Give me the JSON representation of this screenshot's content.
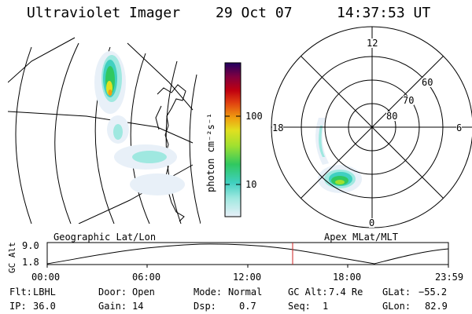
{
  "header": {
    "instrument": "Ultraviolet Imager",
    "date": "29 Oct 07",
    "time": "14:37:53 UT"
  },
  "colorbar": {
    "unit_label": "photon cm⁻²s⁻¹",
    "ticks": [
      "100",
      "10"
    ]
  },
  "polar_plot": {
    "mlt_labels": [
      "12",
      "18",
      "6",
      "0"
    ],
    "lat_labels": [
      "60",
      "70",
      "80"
    ]
  },
  "panel_labels": {
    "geographic": "Geographic Lat/Lon",
    "apex": "Apex MLat/MLT"
  },
  "altitude_plot": {
    "ylabel": "GC Alt",
    "ymax": "9.0",
    "ymin": "1.8",
    "time_ticks": [
      "00:00",
      "06:00",
      "12:00",
      "18:00",
      "23:59"
    ]
  },
  "info": {
    "filter_label": "Flt:",
    "filter_value": "LBHL",
    "door_label": "Door:",
    "door_value": "Open",
    "mode_label": "Mode:",
    "mode_value": "Normal",
    "gcalt_label": "GC Alt:",
    "gcalt_value": "7.4 Re",
    "glat_label": "GLat:",
    "glat_value": "−55.2",
    "ip_label": "IP:",
    "ip_value": "36.0",
    "gain_label": "Gain:",
    "gain_value": "14",
    "dsp_label": "Dsp:",
    "dsp_value": "0.7",
    "seq_label": "Seq:",
    "seq_value": "1",
    "glon_label": "GLon:",
    "glon_value": "82.9"
  },
  "colors": {
    "marker": "#cc2222",
    "aurora_scale": [
      "#e8f0f8",
      "#9fe8e0",
      "#40d0c0",
      "#30c860",
      "#a0e030",
      "#e0e020",
      "#f0a010",
      "#e04010",
      "#c00010",
      "#800040",
      "#200060"
    ]
  }
}
